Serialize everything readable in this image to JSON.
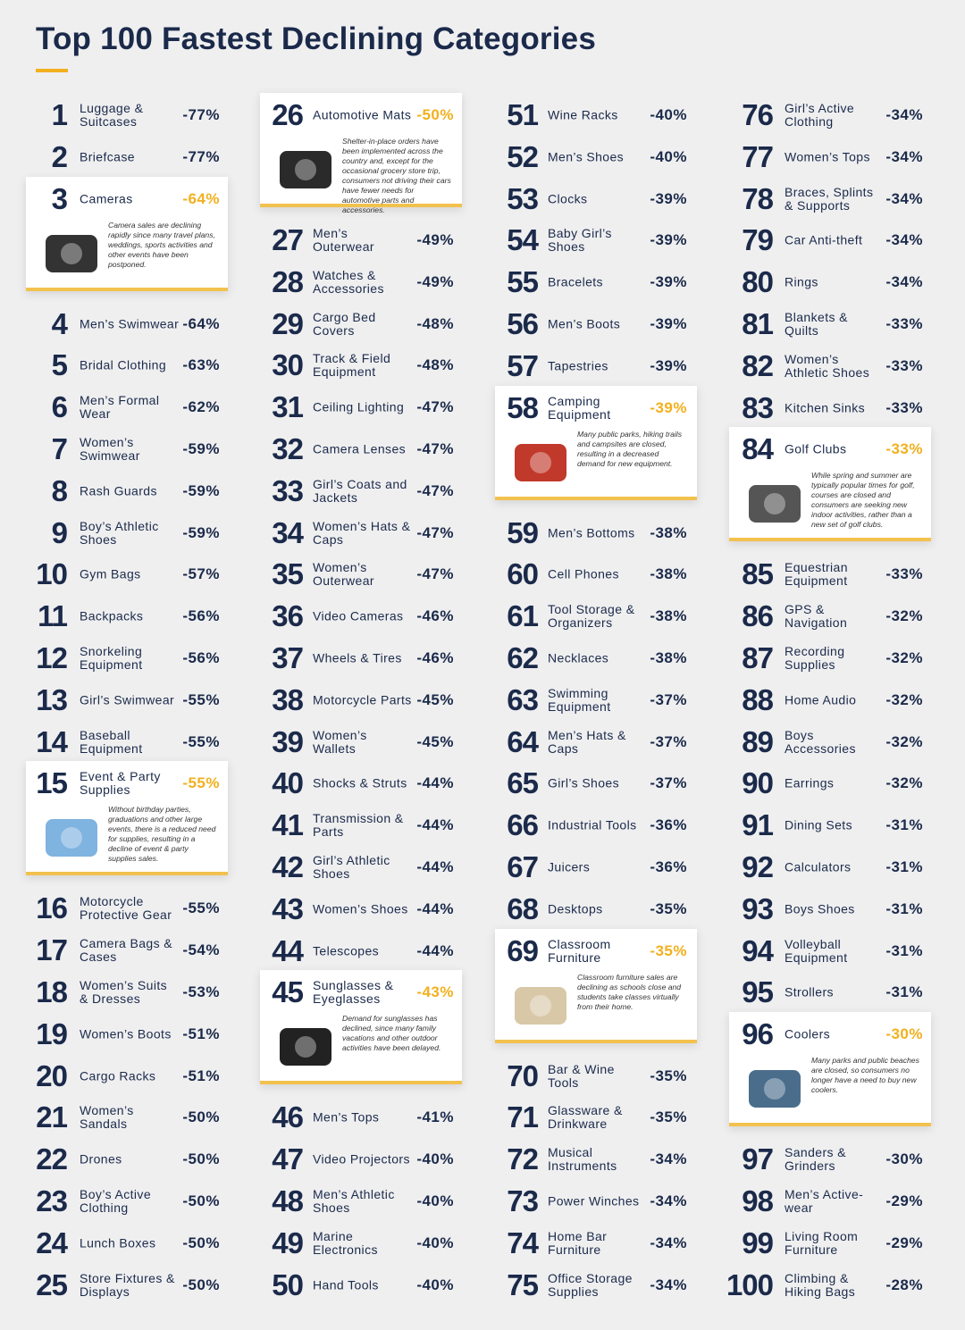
{
  "header": {
    "title": "Top 100 Fastest Declining Categories"
  },
  "items": [
    {
      "rank": 1,
      "name": "Luggage & Suitcases",
      "change": "-77%"
    },
    {
      "rank": 2,
      "name": "Briefcase",
      "change": "-77%"
    },
    {
      "rank": 3,
      "name": "Cameras",
      "change": "-64%",
      "note": "Camera sales are declining rapidly since many travel plans, weddings, sports activities and other events have been postponed."
    },
    {
      "rank": 4,
      "name": "Men’s Swimwear",
      "change": "-64%"
    },
    {
      "rank": 5,
      "name": "Bridal Clothing",
      "change": "-63%"
    },
    {
      "rank": 6,
      "name": "Men’s Formal Wear",
      "change": "-62%"
    },
    {
      "rank": 7,
      "name": "Women’s Swimwear",
      "change": "-59%"
    },
    {
      "rank": 8,
      "name": "Rash Guards",
      "change": "-59%"
    },
    {
      "rank": 9,
      "name": "Boy’s Athletic Shoes",
      "change": "-59%"
    },
    {
      "rank": 10,
      "name": "Gym Bags",
      "change": "-57%"
    },
    {
      "rank": 11,
      "name": "Backpacks",
      "change": "-56%"
    },
    {
      "rank": 12,
      "name": "Snorkeling Equipment",
      "change": "-56%"
    },
    {
      "rank": 13,
      "name": "Girl’s Swimwear",
      "change": "-55%"
    },
    {
      "rank": 14,
      "name": "Baseball Equipment",
      "change": "-55%"
    },
    {
      "rank": 15,
      "name": "Event & Party Supplies",
      "change": "-55%",
      "note": "Without birthday parties, graduations and other large events, there is a reduced need for supplies, resulting in a decline of event & party supplies sales."
    },
    {
      "rank": 16,
      "name": "Motorcycle Protective Gear",
      "change": "-55%"
    },
    {
      "rank": 17,
      "name": "Camera Bags & Cases",
      "change": "-54%"
    },
    {
      "rank": 18,
      "name": "Women’s Suits & Dresses",
      "change": "-53%"
    },
    {
      "rank": 19,
      "name": "Women’s Boots",
      "change": "-51%"
    },
    {
      "rank": 20,
      "name": "Cargo Racks",
      "change": "-51%"
    },
    {
      "rank": 21,
      "name": "Women’s Sandals",
      "change": "-50%"
    },
    {
      "rank": 22,
      "name": "Drones",
      "change": "-50%"
    },
    {
      "rank": 23,
      "name": "Boy’s Active Clothing",
      "change": "-50%"
    },
    {
      "rank": 24,
      "name": "Lunch Boxes",
      "change": "-50%"
    },
    {
      "rank": 25,
      "name": "Store Fixtures & Displays",
      "change": "-50%"
    },
    {
      "rank": 26,
      "name": "Automotive Mats",
      "change": "-50%",
      "note": "Shelter-in-place orders have been implemented across the country and, except for the occasional grocery store trip, consumers not driving their cars have fewer needs for automotive parts and accessories."
    },
    {
      "rank": 27,
      "name": "Men’s Outerwear",
      "change": "-49%"
    },
    {
      "rank": 28,
      "name": "Watches & Accessories",
      "change": "-49%"
    },
    {
      "rank": 29,
      "name": "Cargo Bed Covers",
      "change": "-48%"
    },
    {
      "rank": 30,
      "name": "Track & Field Equipment",
      "change": "-48%"
    },
    {
      "rank": 31,
      "name": "Ceiling Lighting",
      "change": "-47%"
    },
    {
      "rank": 32,
      "name": "Camera Lenses",
      "change": "-47%"
    },
    {
      "rank": 33,
      "name": "Girl’s Coats and Jackets",
      "change": "-47%"
    },
    {
      "rank": 34,
      "name": "Women’s Hats & Caps",
      "change": "-47%"
    },
    {
      "rank": 35,
      "name": "Women’s Outerwear",
      "change": "-47%"
    },
    {
      "rank": 36,
      "name": "Video Cameras",
      "change": "-46%"
    },
    {
      "rank": 37,
      "name": "Wheels & Tires",
      "change": "-46%"
    },
    {
      "rank": 38,
      "name": "Motorcycle Parts",
      "change": "-45%"
    },
    {
      "rank": 39,
      "name": "Women’s Wallets",
      "change": "-45%"
    },
    {
      "rank": 40,
      "name": "Shocks & Struts",
      "change": "-44%"
    },
    {
      "rank": 41,
      "name": "Transmission & Parts",
      "change": "-44%"
    },
    {
      "rank": 42,
      "name": "Girl’s Athletic Shoes",
      "change": "-44%"
    },
    {
      "rank": 43,
      "name": "Women’s Shoes",
      "change": "-44%"
    },
    {
      "rank": 44,
      "name": "Telescopes",
      "change": "-44%"
    },
    {
      "rank": 45,
      "name": "Sunglasses & Eyeglasses",
      "change": "-43%",
      "note": "Demand for sunglasses has declined, since many family vacations and other outdoor activities have been delayed."
    },
    {
      "rank": 46,
      "name": "Men’s Tops",
      "change": "-41%"
    },
    {
      "rank": 47,
      "name": "Video Projectors",
      "change": "-40%"
    },
    {
      "rank": 48,
      "name": "Men’s Athletic Shoes",
      "change": "-40%"
    },
    {
      "rank": 49,
      "name": "Marine Electronics",
      "change": "-40%"
    },
    {
      "rank": 50,
      "name": "Hand Tools",
      "change": "-40%"
    },
    {
      "rank": 51,
      "name": "Wine Racks",
      "change": "-40%"
    },
    {
      "rank": 52,
      "name": "Men’s Shoes",
      "change": "-40%"
    },
    {
      "rank": 53,
      "name": "Clocks",
      "change": "-39%"
    },
    {
      "rank": 54,
      "name": "Baby Girl’s Shoes",
      "change": "-39%"
    },
    {
      "rank": 55,
      "name": "Bracelets",
      "change": "-39%"
    },
    {
      "rank": 56,
      "name": "Men’s Boots",
      "change": "-39%"
    },
    {
      "rank": 57,
      "name": "Tapestries",
      "change": "-39%"
    },
    {
      "rank": 58,
      "name": "Camping Equipment",
      "change": "-39%",
      "note": "Many public parks, hiking trails and campsites are closed, resulting in a decreased demand for new equipment."
    },
    {
      "rank": 59,
      "name": "Men’s Bottoms",
      "change": "-38%"
    },
    {
      "rank": 60,
      "name": "Cell Phones",
      "change": "-38%"
    },
    {
      "rank": 61,
      "name": "Tool Storage & Organizers",
      "change": "-38%"
    },
    {
      "rank": 62,
      "name": "Necklaces",
      "change": "-38%"
    },
    {
      "rank": 63,
      "name": "Swimming Equipment",
      "change": "-37%"
    },
    {
      "rank": 64,
      "name": "Men’s Hats & Caps",
      "change": "-37%"
    },
    {
      "rank": 65,
      "name": "Girl’s Shoes",
      "change": "-37%"
    },
    {
      "rank": 66,
      "name": "Industrial Tools",
      "change": "-36%"
    },
    {
      "rank": 67,
      "name": "Juicers",
      "change": "-36%"
    },
    {
      "rank": 68,
      "name": "Desktops",
      "change": "-35%"
    },
    {
      "rank": 69,
      "name": "Classroom Furniture",
      "change": "-35%",
      "note": "Classroom furniture sales are declining as schools close and students take classes virtually from their home."
    },
    {
      "rank": 70,
      "name": "Bar & Wine Tools",
      "change": "-35%"
    },
    {
      "rank": 71,
      "name": "Glassware & Drinkware",
      "change": "-35%"
    },
    {
      "rank": 72,
      "name": "Musical Instruments",
      "change": "-34%"
    },
    {
      "rank": 73,
      "name": "Power Winches",
      "change": "-34%"
    },
    {
      "rank": 74,
      "name": "Home Bar Furniture",
      "change": "-34%"
    },
    {
      "rank": 75,
      "name": "Office Storage Supplies",
      "change": "-34%"
    },
    {
      "rank": 76,
      "name": "Girl’s Active Clothing",
      "change": "-34%"
    },
    {
      "rank": 77,
      "name": "Women’s Tops",
      "change": "-34%"
    },
    {
      "rank": 78,
      "name": "Braces, Splints & Supports",
      "change": "-34%"
    },
    {
      "rank": 79,
      "name": "Car Anti-theft",
      "change": "-34%"
    },
    {
      "rank": 80,
      "name": "Rings",
      "change": "-34%"
    },
    {
      "rank": 81,
      "name": "Blankets & Quilts",
      "change": "-33%"
    },
    {
      "rank": 82,
      "name": "Women’s Athletic Shoes",
      "change": "-33%"
    },
    {
      "rank": 83,
      "name": "Kitchen Sinks",
      "change": "-33%"
    },
    {
      "rank": 84,
      "name": "Golf Clubs",
      "change": "-33%",
      "note": "While spring and summer are typically popular times for golf, courses are closed and consumers are seeking new indoor activities, rather than a new set of golf clubs."
    },
    {
      "rank": 85,
      "name": "Equestrian Equipment",
      "change": "-33%"
    },
    {
      "rank": 86,
      "name": "GPS & Navigation",
      "change": "-32%"
    },
    {
      "rank": 87,
      "name": "Recording Supplies",
      "change": "-32%"
    },
    {
      "rank": 88,
      "name": "Home Audio",
      "change": "-32%"
    },
    {
      "rank": 89,
      "name": "Boys Accessories",
      "change": "-32%"
    },
    {
      "rank": 90,
      "name": "Earrings",
      "change": "-32%"
    },
    {
      "rank": 91,
      "name": "Dining Sets",
      "change": "-31%"
    },
    {
      "rank": 92,
      "name": "Calculators",
      "change": "-31%"
    },
    {
      "rank": 93,
      "name": "Boys Shoes",
      "change": "-31%"
    },
    {
      "rank": 94,
      "name": "Volleyball Equipment",
      "change": "-31%"
    },
    {
      "rank": 95,
      "name": "Strollers",
      "change": "-31%"
    },
    {
      "rank": 96,
      "name": "Coolers",
      "change": "-30%",
      "note": "Many parks and public beaches are closed, so consumers no longer have a need to buy new coolers."
    },
    {
      "rank": 97,
      "name": "Sanders & Grinders",
      "change": "-30%"
    },
    {
      "rank": 98,
      "name": "Men’s Active-wear",
      "change": "-29%"
    },
    {
      "rank": 99,
      "name": "Living Room Furniture",
      "change": "-29%"
    },
    {
      "rank": 100,
      "name": "Climbing & Hiking Bags",
      "change": "-28%"
    }
  ]
}
